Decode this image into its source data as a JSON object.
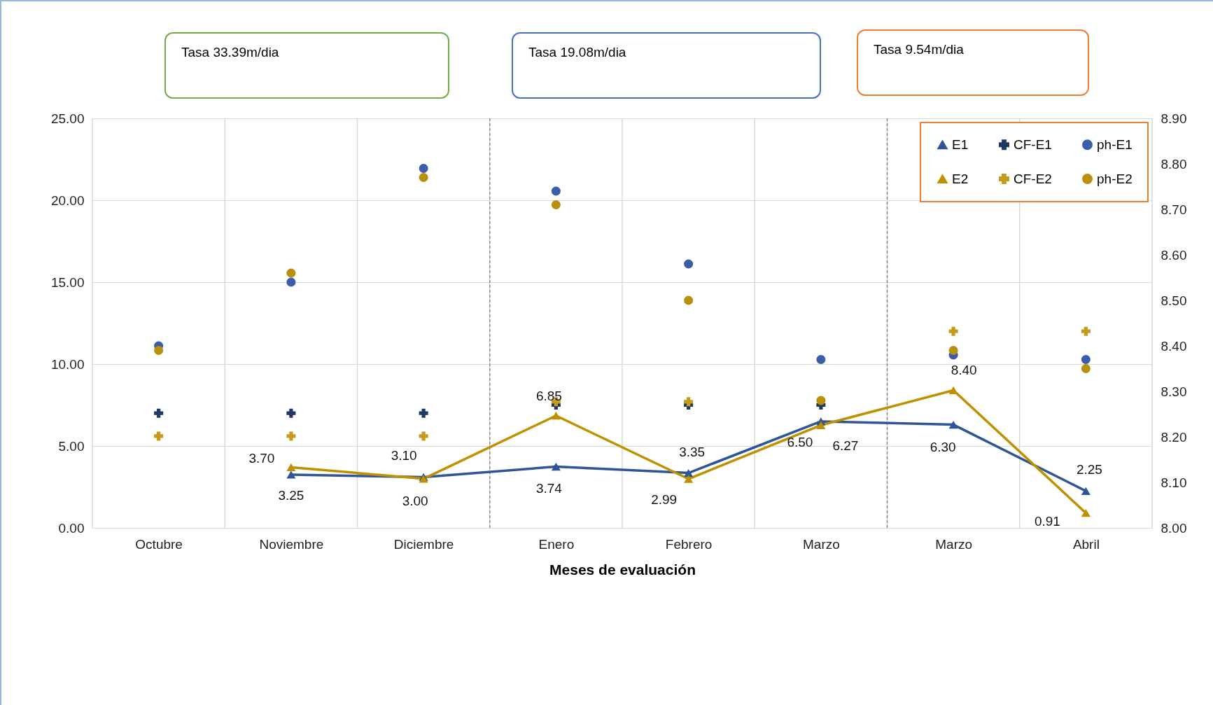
{
  "chart_data": {
    "type": "line",
    "xlabel": "Meses de evaluación",
    "annotations": [
      "Tasa 33.39m/dia",
      "Tasa 19.08m/dia",
      "Tasa 9.54m/dia"
    ],
    "categories": [
      "Octubre",
      "Noviembre",
      "Diciembre",
      "Enero",
      "Febrero",
      "Marzo",
      "Marzo",
      "Abril"
    ],
    "series": [
      {
        "name": "E1",
        "color": "#2f5597",
        "marker": "triangle",
        "values": [
          null,
          3.25,
          3.1,
          3.74,
          3.35,
          6.5,
          6.3,
          2.25
        ],
        "value_labels": [
          null,
          "3.25",
          "3.10",
          "3.74",
          "3.35",
          "6.50",
          "6.30",
          "2.25"
        ]
      },
      {
        "name": "E2",
        "color": "#bf9000",
        "marker": "triangle",
        "values": [
          null,
          3.7,
          3.0,
          6.85,
          2.99,
          6.27,
          8.4,
          0.91
        ],
        "value_labels": [
          null,
          "3.70",
          "3.00",
          "6.85",
          "2.99",
          "6.27",
          "8.40",
          "0.91"
        ]
      },
      {
        "name": "CF-E1",
        "type": "scatter",
        "color": "#1f3864",
        "marker": "cross",
        "values": [
          7.0,
          7.0,
          7.0,
          7.5,
          7.5,
          7.5,
          null,
          null
        ]
      },
      {
        "name": "CF-E2",
        "type": "scatter",
        "color": "#c59b1a",
        "marker": "cross",
        "values": [
          5.6,
          5.6,
          5.6,
          7.7,
          7.7,
          null,
          12.0,
          12.0
        ]
      },
      {
        "name": "ph-E1",
        "type": "scatter",
        "color": "#3a5ea8",
        "marker": "circle",
        "axis": "y2",
        "values": [
          8.4,
          8.54,
          8.79,
          8.74,
          8.58,
          8.37,
          8.38,
          8.37
        ]
      },
      {
        "name": "ph-E2",
        "type": "scatter",
        "color": "#b8900c",
        "marker": "circle",
        "axis": "y2",
        "values": [
          8.39,
          8.56,
          8.77,
          8.71,
          8.5,
          8.28,
          8.39,
          8.35
        ]
      }
    ],
    "ylim": [
      0,
      25
    ],
    "yticks": [
      {
        "value": 0,
        "label": "0.00"
      },
      {
        "value": 5,
        "label": "5.00"
      },
      {
        "value": 10,
        "label": "10.00"
      },
      {
        "value": 15,
        "label": "15.00"
      },
      {
        "value": 20,
        "label": "20.00"
      },
      {
        "value": 25,
        "label": "25.00"
      }
    ],
    "y2lim": [
      8.0,
      8.9
    ],
    "y2ticks": [
      {
        "value": 8.0,
        "label": "8.00"
      },
      {
        "value": 8.1,
        "label": "8.10"
      },
      {
        "value": 8.2,
        "label": "8.20"
      },
      {
        "value": 8.3,
        "label": "8.30"
      },
      {
        "value": 8.4,
        "label": "8.40"
      },
      {
        "value": 8.5,
        "label": "8.50"
      },
      {
        "value": 8.6,
        "label": "8.60"
      },
      {
        "value": 8.7,
        "label": "8.70"
      },
      {
        "value": 8.8,
        "label": "8.80"
      },
      {
        "value": 8.9,
        "label": "8.90"
      }
    ],
    "grid": true,
    "legend": "top right"
  }
}
